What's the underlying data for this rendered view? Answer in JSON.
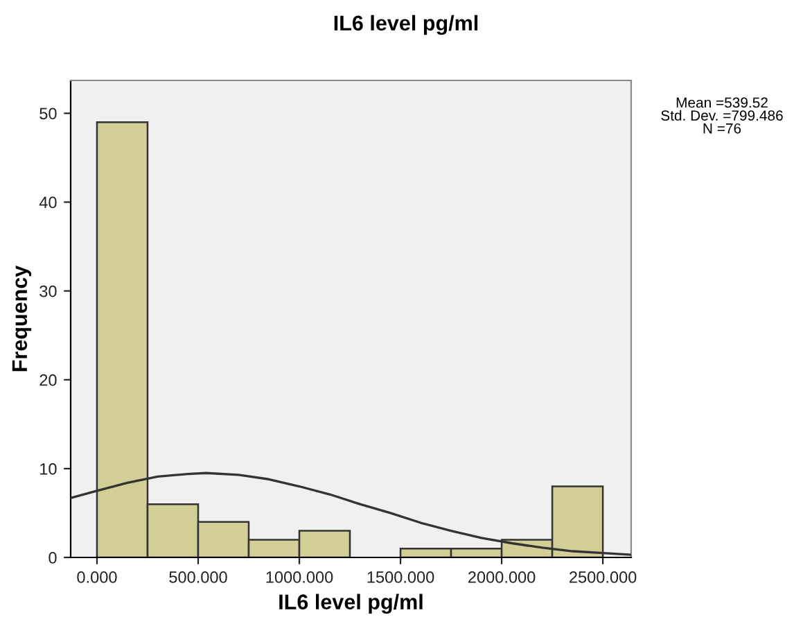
{
  "chart_data": {
    "type": "histogram",
    "title": "IL6 level pg/ml",
    "xlabel": "IL6 level pg/ml",
    "ylabel": "Frequency",
    "bins": [
      0,
      250,
      500,
      750,
      1000,
      1250,
      1500,
      1750,
      2000,
      2250,
      2500
    ],
    "values": [
      49,
      6,
      4,
      2,
      3,
      0,
      1,
      1,
      2,
      8
    ],
    "color": "#d3ce96",
    "series": [
      {
        "type": "line",
        "color": "#333333",
        "x": [
          -130,
          0,
          150,
          300,
          450,
          539.52,
          700,
          850,
          1000,
          1150,
          1300,
          1450,
          1600,
          1750,
          1900,
          2050,
          2200,
          2350,
          2500,
          2640
        ],
        "values": [
          6.7,
          7.5,
          8.4,
          9.1,
          9.4,
          9.5,
          9.3,
          8.8,
          8.0,
          7.1,
          6.0,
          5.0,
          3.9,
          3.0,
          2.2,
          1.6,
          1.1,
          0.7,
          0.5,
          0.3
        ]
      }
    ],
    "xlim": [
      -130,
      2640
    ],
    "ylim": [
      0,
      53.7
    ],
    "xticks": [
      {
        "value": 0,
        "label": "0.000"
      },
      {
        "value": 500,
        "label": "500.000"
      },
      {
        "value": 1000,
        "label": "1000.000"
      },
      {
        "value": 1500,
        "label": "1500.000"
      },
      {
        "value": 2000,
        "label": "2000.000"
      },
      {
        "value": 2500,
        "label": "2500.000"
      }
    ],
    "yticks": [
      0,
      10,
      20,
      30,
      40,
      50
    ],
    "grid": false,
    "annotations": [
      "Mean =539.52\nStd. Dev. =799.486\nN =76"
    ]
  }
}
